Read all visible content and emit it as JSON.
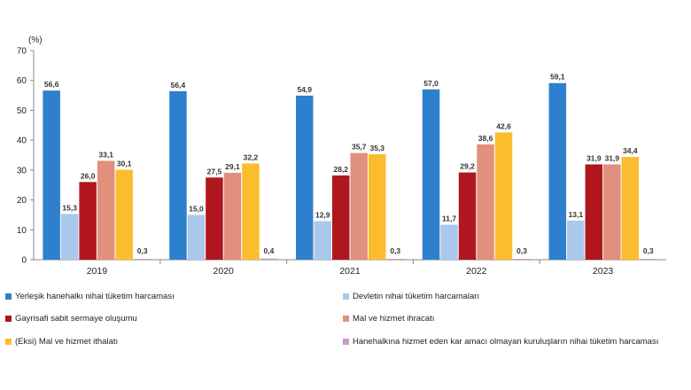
{
  "chart_data": {
    "type": "bar",
    "unit_label": "(%)",
    "categories": [
      "2019",
      "2020",
      "2021",
      "2022",
      "2023"
    ],
    "ylim": [
      0,
      70
    ],
    "yticks": [
      0,
      10,
      20,
      30,
      40,
      50,
      60,
      70
    ],
    "grid": false,
    "legend_position": "bottom",
    "series": [
      {
        "name": "Yerleşik hanehalkı nihai tüketim harcaması",
        "color": "#2e7fcc",
        "values": [
          56.6,
          56.4,
          54.9,
          57.0,
          59.1
        ],
        "labels": [
          "56,6",
          "56,4",
          "54,9",
          "57,0",
          "59,1"
        ]
      },
      {
        "name": "Devletin nihai tüketim harcamaları",
        "color": "#a9c8ec",
        "values": [
          15.3,
          15.0,
          12.9,
          11.7,
          13.1
        ],
        "labels": [
          "15,3",
          "15,0",
          "12,9",
          "11,7",
          "13,1"
        ]
      },
      {
        "name": "Gayrisafi sabit sermaye oluşumu",
        "color": "#b0161d",
        "values": [
          26.0,
          27.5,
          28.2,
          29.2,
          31.9
        ],
        "labels": [
          "26,0",
          "27,5",
          "28,2",
          "29,2",
          "31,9"
        ]
      },
      {
        "name": "Mal ve hizmet ihracatı",
        "color": "#e0907c",
        "values": [
          33.1,
          29.1,
          35.7,
          38.6,
          31.9
        ],
        "labels": [
          "33,1",
          "29,1",
          "35,7",
          "38,6",
          "31,9"
        ]
      },
      {
        "name": "(Eksi) Mal ve hizmet ithalatı",
        "color": "#fbbd2e",
        "values": [
          30.1,
          32.2,
          35.3,
          42.6,
          34.4
        ],
        "labels": [
          "30,1",
          "32,2",
          "35,3",
          "42,6",
          "34,4"
        ]
      },
      {
        "name": "Hanehalkına hizmet eden kar amacı olmayan kuruluşların nihai tüketim harcaması",
        "color": "#c79bc9",
        "values": [
          0.3,
          0.4,
          0.3,
          0.3,
          0.3
        ],
        "labels": [
          "0,3",
          "0,4",
          "0,3",
          "0,3",
          "0,3"
        ]
      }
    ]
  }
}
